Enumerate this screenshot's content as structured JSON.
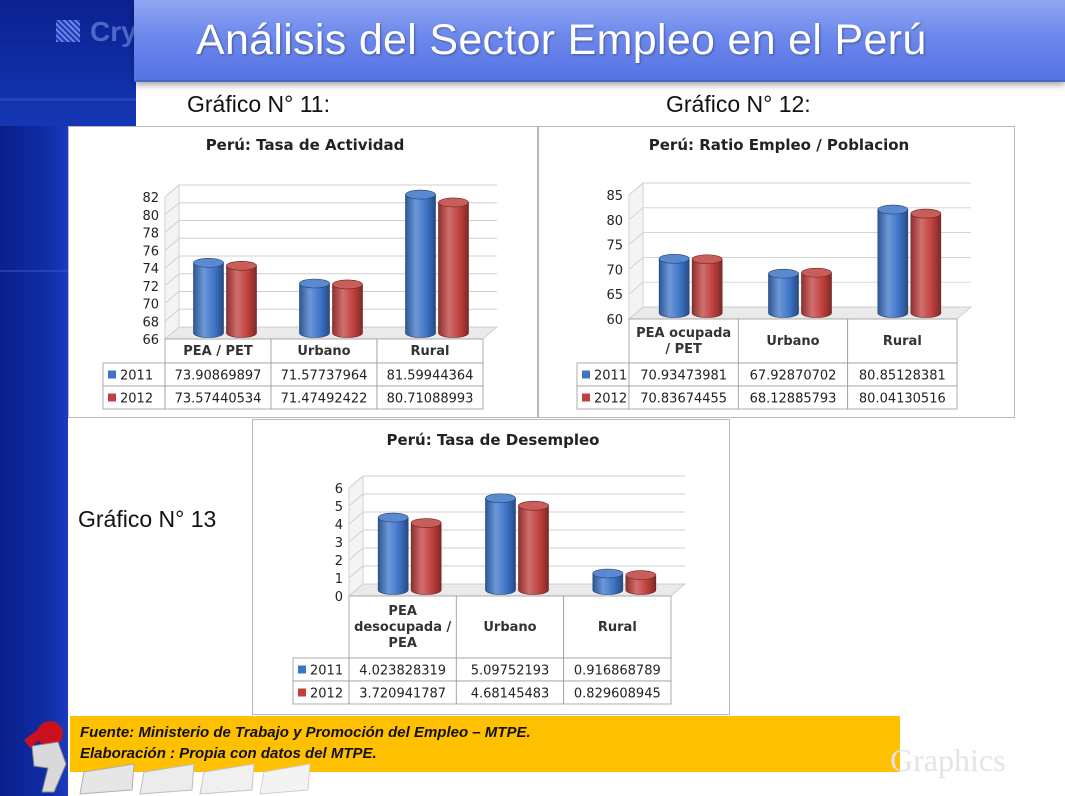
{
  "title": "Análisis del Sector Empleo en el Perú",
  "template": {
    "logo_text": "Cry",
    "watermark": "Graphics"
  },
  "captions": {
    "c11": "Gráfico N° 11:",
    "c12": "Gráfico N° 12:",
    "c13": "Gráfico N° 13"
  },
  "source": {
    "line1": "Fuente: Ministerio de Trabajo y Promoción del Empleo – MTPE.",
    "line2": "Elaboración : Propia con datos del MTPE."
  },
  "colors": {
    "s2011": "#3d74c8",
    "s2012": "#c0403d",
    "title_bar": "#6d88ec",
    "source_box": "#ffc000",
    "band": "#102da6"
  },
  "chart_data": [
    {
      "type": "bar",
      "title": "Perú: Tasa de Actividad",
      "categories": [
        "PEA / PET",
        "Urbano",
        "Rural"
      ],
      "series": [
        {
          "name": "2011",
          "values": [
            73.90869897,
            71.57737964,
            81.59944364
          ],
          "labels": [
            "73.90869897",
            "71.57737964",
            "81.59944364"
          ]
        },
        {
          "name": "2012",
          "values": [
            73.57440534,
            71.47492422,
            80.71088993
          ],
          "labels": [
            "73.57440534",
            "71.47492422",
            "80.71088993"
          ]
        }
      ],
      "ylim": [
        66,
        82
      ],
      "yticks": [
        "66",
        "68",
        "70",
        "72",
        "74",
        "76",
        "78",
        "80",
        "82"
      ],
      "grid": true,
      "legend": "data-table"
    },
    {
      "type": "bar",
      "title": "Perú: Ratio Empleo / Poblacion",
      "categories": [
        "PEA ocupada\n/ PET",
        "Urbano",
        "Rural"
      ],
      "series": [
        {
          "name": "2011",
          "values": [
            70.93473981,
            67.92870702,
            80.85128381
          ],
          "labels": [
            "70.93473981",
            "67.92870702",
            "80.85128381"
          ]
        },
        {
          "name": "2012",
          "values": [
            70.83674455,
            68.12885793,
            80.04130516
          ],
          "labels": [
            "70.83674455",
            "68.12885793",
            "80.04130516"
          ]
        }
      ],
      "ylim": [
        60,
        85
      ],
      "yticks": [
        "60",
        "65",
        "70",
        "75",
        "80",
        "85"
      ],
      "grid": true,
      "legend": "data-table"
    },
    {
      "type": "bar",
      "title": "Perú: Tasa de Desempleo",
      "categories": [
        "PEA\ndesocupada /\nPEA",
        "Urbano",
        "Rural"
      ],
      "series": [
        {
          "name": "2011",
          "values": [
            4.023828319,
            5.09752193,
            0.916868789
          ],
          "labels": [
            "4.023828319",
            "5.09752193",
            "0.916868789"
          ]
        },
        {
          "name": "2012",
          "values": [
            3.720941787,
            4.68145483,
            0.829608945
          ],
          "labels": [
            "3.720941787",
            "4.68145483",
            "0.829608945"
          ]
        }
      ],
      "ylim": [
        0,
        6
      ],
      "yticks": [
        "0",
        "1",
        "2",
        "3",
        "4",
        "5",
        "6"
      ],
      "grid": true,
      "legend": "data-table"
    }
  ]
}
